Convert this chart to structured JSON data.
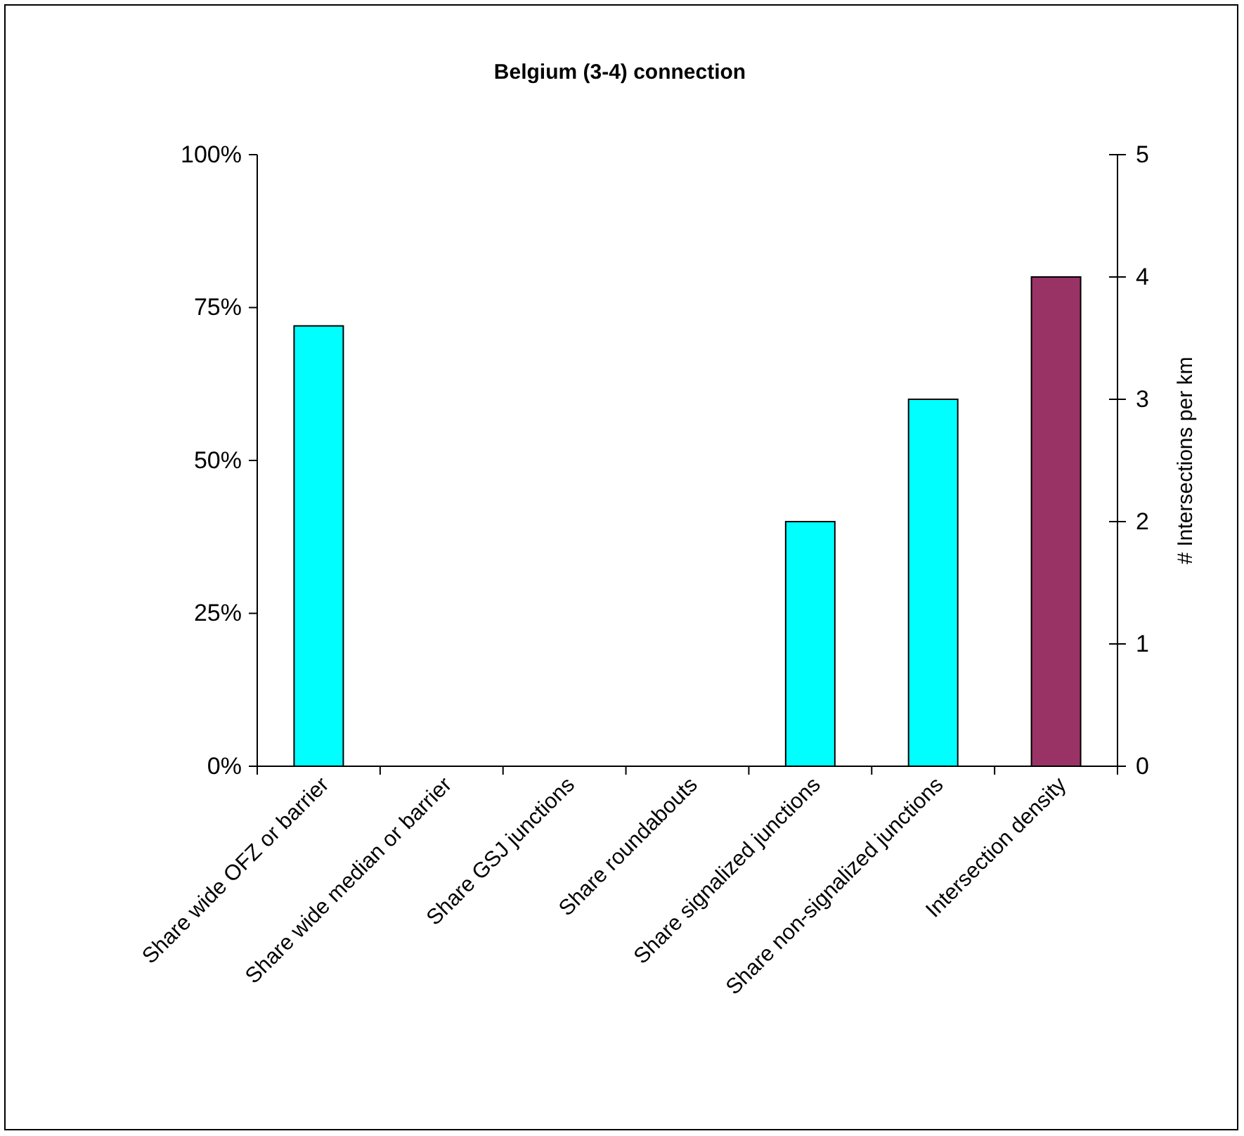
{
  "chart_data": {
    "type": "bar",
    "title": "Belgium (3-4) connection",
    "y2label": "# Intersections per km",
    "categories": [
      "Share wide OFZ or barrier",
      "Share wide median or barrier",
      "Share GSJ junctions",
      "Share roundabouts",
      "Share signalized junctions",
      "Share non-signalized junctions",
      "Intersection density"
    ],
    "series": [
      {
        "color": "#00ffff",
        "values": [
          72,
          0,
          0,
          0,
          40,
          60,
          null
        ]
      },
      {
        "color": "#993366",
        "axis": "y2",
        "values": [
          null,
          null,
          null,
          null,
          null,
          null,
          4.0
        ]
      }
    ],
    "ylim": [
      0,
      100
    ],
    "yticks": [
      {
        "value": 0,
        "label": "0%"
      },
      {
        "value": 25,
        "label": "25%"
      },
      {
        "value": 50,
        "label": "50%"
      },
      {
        "value": 75,
        "label": "75%"
      },
      {
        "value": 100,
        "label": "100%"
      }
    ],
    "y2lim": [
      0,
      5
    ],
    "y2ticks": [
      0,
      1,
      2,
      3,
      4,
      5
    ]
  }
}
